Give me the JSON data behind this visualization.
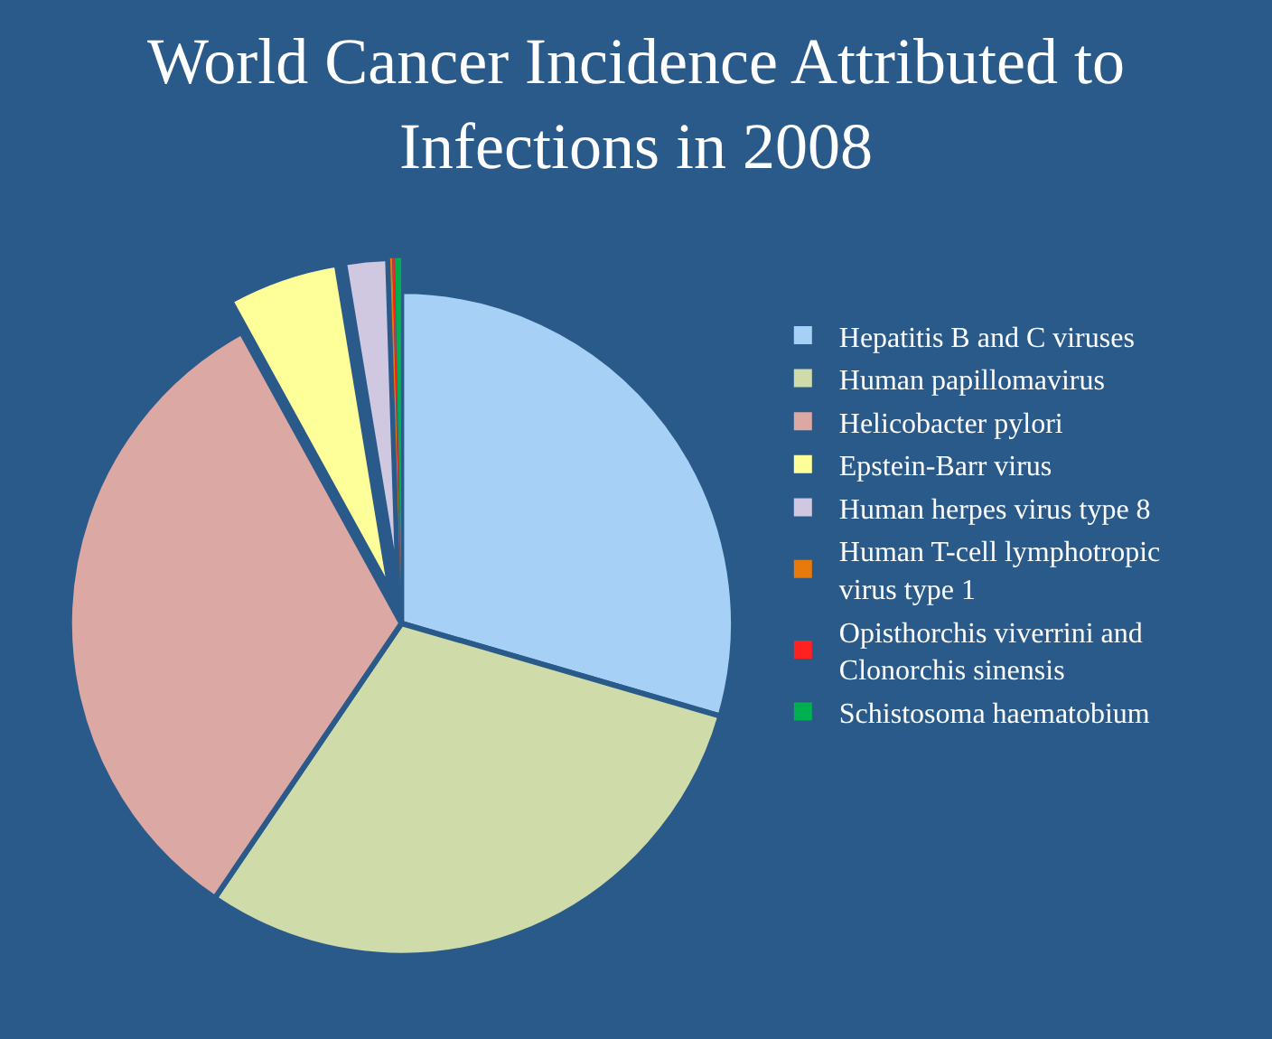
{
  "chart_data": {
    "type": "pie",
    "title": "World Cancer Incidence Attributed to Infections in 2008",
    "categories": [
      "Hepatitis B and C viruses",
      "Human papillomavirus",
      "Helicobacter pylori",
      "Epstein-Barr virus",
      "Human herpes virus type 8",
      "Human T-cell lymphotropic virus type 1",
      "Opisthorchis viverrini and Clonorchis sinensis",
      "Schistosoma haematobium"
    ],
    "values": [
      29.5,
      30,
      32.5,
      5.4,
      2.1,
      0.1,
      0.1,
      0.3
    ],
    "colors": [
      "#a6d0f5",
      "#cfdcaa",
      "#dca8a3",
      "#ffff99",
      "#d0c8e0",
      "#e87a0c",
      "#ff2020",
      "#00b050"
    ],
    "legend": "right"
  }
}
